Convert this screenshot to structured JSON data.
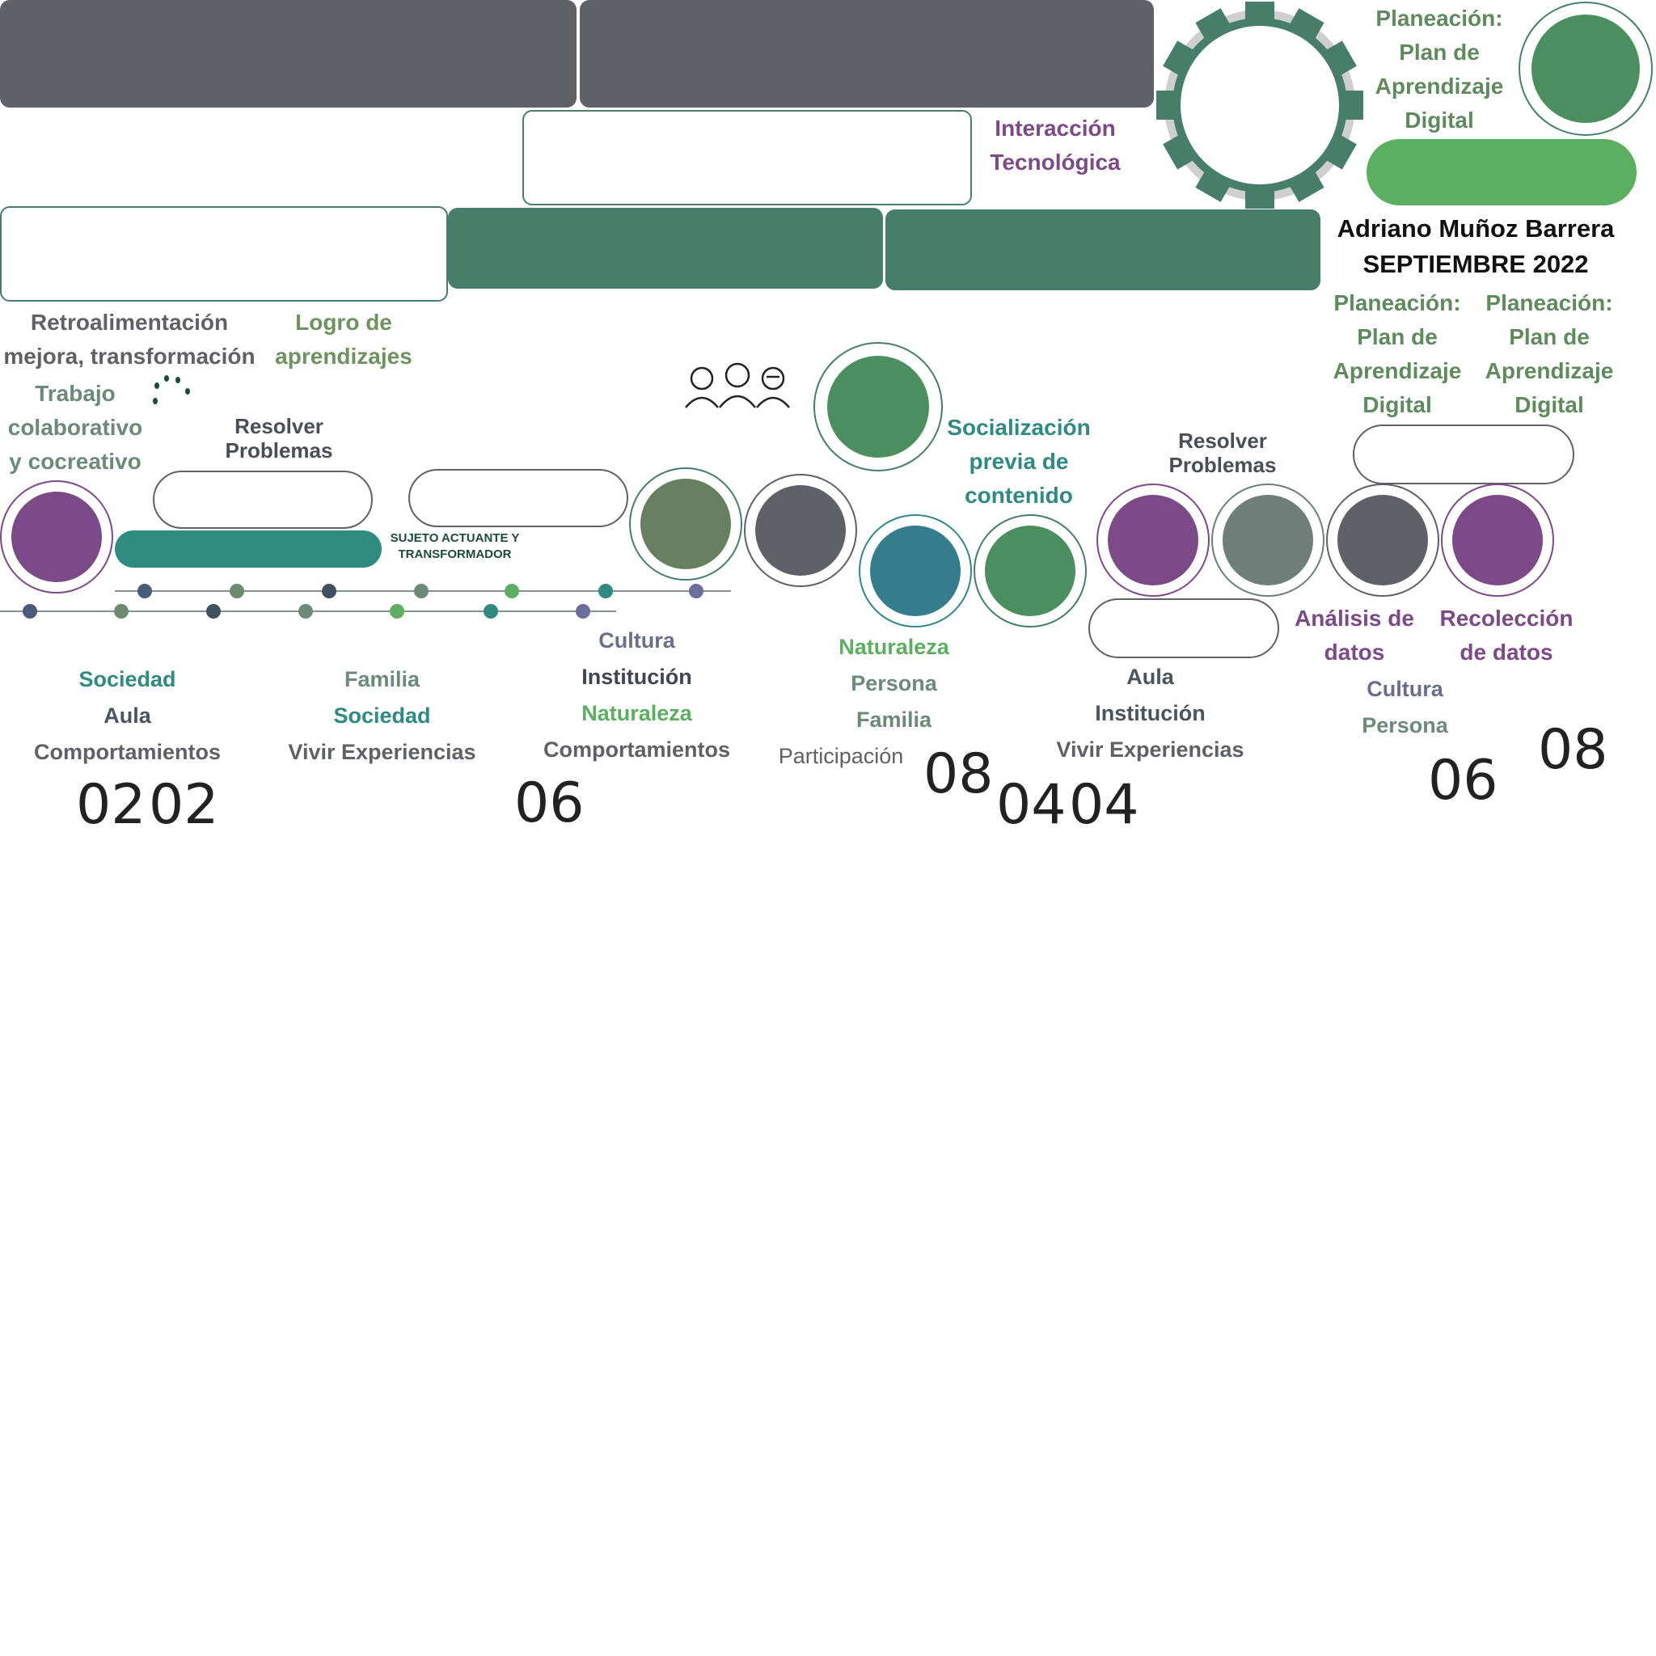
{
  "colors": {
    "gray": "#5f6166",
    "green": "#467e6a",
    "light_green": "#5caf60",
    "purple": "#7b4a87",
    "teal": "#2f8a80",
    "text_gray": "#5f6166",
    "text_green": "#5e8a5e",
    "text_purple": "#7b4a87"
  },
  "header": {
    "planeacion_top": [
      "Planeación:",
      "Plan de",
      "Aprendizaje",
      "Digital"
    ],
    "interaccion": [
      "Interacción",
      "Tecnológica"
    ],
    "author": "Adriano Muñoz Barrera",
    "date": "SEPTIEMBRE 2022",
    "planeacion_left": [
      "Planeación:",
      "Plan de",
      "Aprendizaje",
      "Digital"
    ],
    "planeacion_right": [
      "Planeación:",
      "Plan de",
      "Aprendizaje",
      "Digital"
    ]
  },
  "labels": {
    "retroalimentacion": [
      "Retroalimentación",
      "mejora, transformación"
    ],
    "logro": [
      "Logro de",
      "aprendizajes"
    ],
    "trabajo": [
      "Trabajo",
      "colaborativo",
      "y cocreativo"
    ],
    "resolver_left": [
      "Resolver",
      "Problemas"
    ],
    "sujeto": [
      "SUJETO ACTUANTE Y",
      "TRANSFORMADOR"
    ],
    "socializacion": [
      "Socialización",
      "previa de",
      "contenido"
    ],
    "resolver_right": [
      "Resolver",
      "Problemas"
    ],
    "analisis": [
      "Análisis de",
      "datos"
    ],
    "recoleccion": [
      "Recolección",
      "de datos"
    ]
  },
  "columns": {
    "c1": [
      "Sociedad",
      "Aula",
      "Comportamientos"
    ],
    "c2": [
      "Familia",
      "Sociedad",
      "Vivir Experiencias"
    ],
    "c3": [
      "Cultura",
      "Institución",
      "Naturaleza",
      "Comportamientos"
    ],
    "c4": [
      "Naturaleza",
      "Persona",
      "Familia",
      "Participación"
    ],
    "c5": [
      "Aula",
      "Institución",
      "Vivir Experiencias"
    ],
    "c6": [
      "Cultura",
      "Persona"
    ]
  },
  "numbers": {
    "n1": "02",
    "n2": "02",
    "n3": "06",
    "n4": "08",
    "n5": "04",
    "n6": "04",
    "n7": "06",
    "n8": "08"
  },
  "icons": {
    "gear": "gear-icon",
    "people": "people-icon",
    "sparkle": "sparkle-icon"
  }
}
